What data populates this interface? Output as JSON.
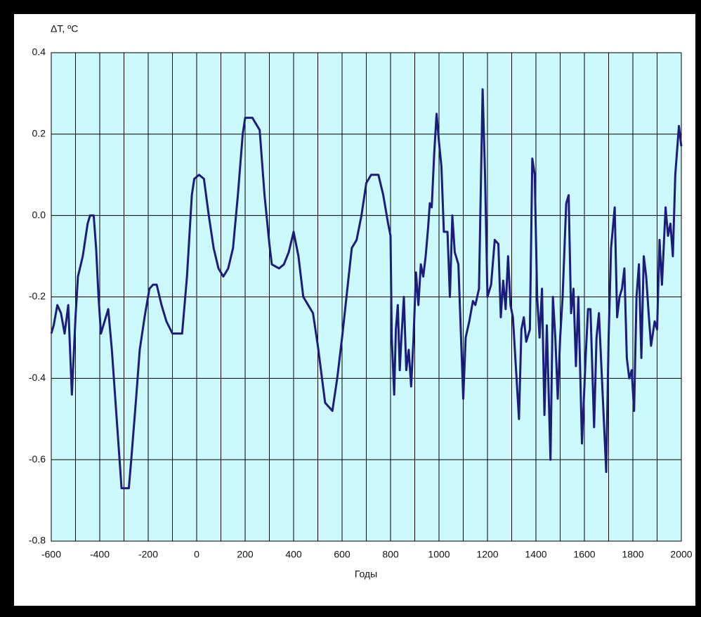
{
  "chart_data": {
    "type": "line",
    "ylabel": "ΔT, ºC",
    "xlabel": "Годы",
    "x": [
      -600,
      -590,
      -575,
      -560,
      -545,
      -530,
      -515,
      -500,
      -490,
      -470,
      -450,
      -440,
      -425,
      -415,
      -405,
      -395,
      -375,
      -365,
      -350,
      -330,
      -310,
      -280,
      -270,
      -250,
      -235,
      -215,
      -195,
      -180,
      -165,
      -145,
      -125,
      -100,
      -60,
      -40,
      -20,
      -10,
      10,
      30,
      50,
      70,
      90,
      110,
      130,
      150,
      170,
      190,
      200,
      230,
      260,
      280,
      300,
      310,
      340,
      360,
      380,
      400,
      420,
      440,
      460,
      480,
      500,
      530,
      560,
      580,
      600,
      620,
      640,
      660,
      680,
      700,
      720,
      750,
      770,
      790,
      800,
      805,
      815,
      822,
      830,
      838,
      845,
      855,
      865,
      875,
      885,
      895,
      905,
      915,
      925,
      935,
      945,
      955,
      962,
      970,
      980,
      990,
      1000,
      1010,
      1020,
      1035,
      1045,
      1055,
      1065,
      1080,
      1100,
      1110,
      1125,
      1140,
      1150,
      1165,
      1180,
      1190,
      1200,
      1215,
      1230,
      1245,
      1255,
      1265,
      1275,
      1285,
      1295,
      1305,
      1320,
      1330,
      1340,
      1350,
      1360,
      1375,
      1385,
      1395,
      1405,
      1415,
      1425,
      1435,
      1445,
      1460,
      1470,
      1480,
      1490,
      1500,
      1510,
      1525,
      1535,
      1545,
      1555,
      1565,
      1575,
      1590,
      1605,
      1615,
      1625,
      1640,
      1650,
      1660,
      1680,
      1690,
      1700,
      1710,
      1725,
      1735,
      1745,
      1755,
      1765,
      1775,
      1785,
      1795,
      1805,
      1815,
      1825,
      1835,
      1845,
      1855,
      1865,
      1875,
      1890,
      1900,
      1910,
      1920,
      1935,
      1945,
      1955,
      1965,
      1975,
      1990,
      2000
    ],
    "series": [
      {
        "color": "#1c1c7c",
        "values": [
          -0.29,
          -0.27,
          -0.22,
          -0.24,
          -0.29,
          -0.22,
          -0.44,
          -0.25,
          -0.15,
          -0.1,
          -0.02,
          0.0,
          0.0,
          -0.08,
          -0.2,
          -0.29,
          -0.25,
          -0.23,
          -0.33,
          -0.5,
          -0.67,
          -0.67,
          -0.6,
          -0.45,
          -0.33,
          -0.25,
          -0.18,
          -0.17,
          -0.17,
          -0.22,
          -0.26,
          -0.29,
          -0.29,
          -0.15,
          0.05,
          0.09,
          0.1,
          0.09,
          0.0,
          -0.08,
          -0.13,
          -0.15,
          -0.13,
          -0.08,
          0.05,
          0.2,
          0.24,
          0.24,
          0.21,
          0.05,
          -0.07,
          -0.12,
          -0.13,
          -0.12,
          -0.09,
          -0.04,
          -0.1,
          -0.2,
          -0.22,
          -0.24,
          -0.32,
          -0.46,
          -0.48,
          -0.4,
          -0.3,
          -0.19,
          -0.08,
          -0.06,
          0.0,
          0.08,
          0.1,
          0.1,
          0.05,
          -0.02,
          -0.05,
          -0.3,
          -0.44,
          -0.28,
          -0.22,
          -0.38,
          -0.3,
          -0.2,
          -0.38,
          -0.33,
          -0.42,
          -0.3,
          -0.14,
          -0.22,
          -0.12,
          -0.15,
          -0.1,
          -0.03,
          0.03,
          0.02,
          0.15,
          0.25,
          0.18,
          0.12,
          -0.04,
          -0.04,
          -0.2,
          0.0,
          -0.09,
          -0.12,
          -0.45,
          -0.3,
          -0.26,
          -0.21,
          -0.22,
          -0.18,
          0.31,
          0.1,
          -0.2,
          -0.17,
          -0.06,
          -0.07,
          -0.25,
          -0.16,
          -0.23,
          -0.1,
          -0.22,
          -0.25,
          -0.4,
          -0.5,
          -0.28,
          -0.25,
          -0.31,
          -0.28,
          0.14,
          0.1,
          -0.2,
          -0.3,
          -0.18,
          -0.49,
          -0.27,
          -0.6,
          -0.2,
          -0.3,
          -0.45,
          -0.3,
          -0.2,
          0.03,
          0.05,
          -0.24,
          -0.18,
          -0.37,
          -0.2,
          -0.56,
          -0.35,
          -0.23,
          -0.23,
          -0.52,
          -0.3,
          -0.24,
          -0.5,
          -0.63,
          -0.3,
          -0.08,
          0.02,
          -0.25,
          -0.2,
          -0.18,
          -0.13,
          -0.35,
          -0.4,
          -0.38,
          -0.48,
          -0.2,
          -0.12,
          -0.35,
          -0.1,
          -0.15,
          -0.24,
          -0.32,
          -0.26,
          -0.28,
          -0.06,
          -0.17,
          0.02,
          -0.05,
          -0.02,
          -0.1,
          0.1,
          0.22,
          0.17
        ]
      }
    ],
    "xlim": [
      -600,
      2000
    ],
    "xticks": [
      -600,
      -400,
      -200,
      0,
      200,
      400,
      600,
      800,
      1000,
      1200,
      1400,
      1600,
      1800,
      2000
    ],
    "xminorticks": [
      -500,
      -300,
      -100,
      100,
      300,
      500,
      700,
      900,
      1100,
      1300,
      1500,
      1700,
      1900
    ],
    "ylim": [
      -0.8,
      0.4
    ],
    "yticks": [
      0.4,
      0.2,
      {
        "value": 0,
        "label": "0.0"
      },
      -0.2,
      -0.4,
      -0.6,
      -0.8
    ],
    "grid": true,
    "background": "#ccf9fc"
  }
}
